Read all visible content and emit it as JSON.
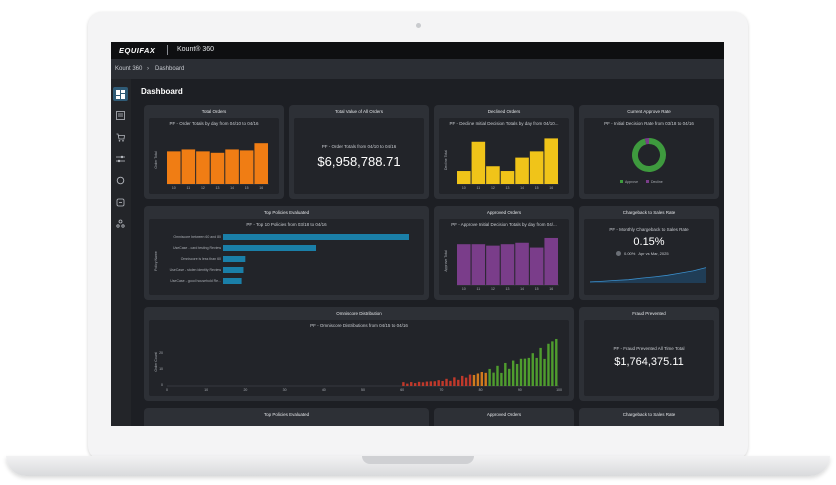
{
  "header": {
    "logo": "EQUIFAX",
    "product": "Kount® 360"
  },
  "breadcrumb": {
    "home": "Kount 360",
    "separator": "›",
    "current": "Dashboard"
  },
  "page": {
    "title": "Dashboard"
  },
  "sidebar": {
    "items": [
      {
        "icon": "dashboard-grid-icon",
        "active": true
      },
      {
        "icon": "orders-list-icon",
        "active": false
      },
      {
        "icon": "cart-icon",
        "active": false
      },
      {
        "icon": "policies-sliders-icon",
        "active": false
      },
      {
        "icon": "refresh-cycle-icon",
        "active": false
      },
      {
        "icon": "rules-icon",
        "active": false
      },
      {
        "icon": "users-network-icon",
        "active": false
      }
    ]
  },
  "cards": {
    "total_orders": {
      "title": "Total Orders",
      "subtitle": "PF - Order Totals by day from 04/10 to 04/16",
      "ylabel": "Order Total"
    },
    "total_value": {
      "title": "Total Value of All Orders",
      "subtitle": "PF - Order Totals from 04/10 to 04/16",
      "value": "$6,958,788.71"
    },
    "declined_orders": {
      "title": "Declined Orders",
      "subtitle": "PF - Decline Initial Decision Totals by day from 04/10...",
      "ylabel": "Decline Total"
    },
    "approve_rate": {
      "title": "Current Approve Rate",
      "subtitle": "PF - Initial Decision Rate from 03/18 to 04/16",
      "legend": [
        "Approve",
        "Decline"
      ]
    },
    "top_policies": {
      "title": "Top Policies Evaluated",
      "subtitle": "PF - Top 10 Policies from 03/18 to 04/16",
      "ylabel": "Policy Name"
    },
    "approved_orders": {
      "title": "Approved Orders",
      "subtitle": "PF - Approve Initial Decision Totals by day from 04/...",
      "ylabel": "Approve Total"
    },
    "chargeback": {
      "title": "Chargeback to Sales Rate",
      "subtitle": "PF - Monthly Chargeback to Sales Rate",
      "value": "0.15%",
      "delta": "0.00%",
      "period": "Apr vs Mar, 2025"
    },
    "omniscore": {
      "title": "Omniscore Distribution",
      "subtitle": "PF - Omniscore Distributions from 04/15 to 04/16",
      "ylabel": "Order Count"
    },
    "fraud_prevented": {
      "title": "Fraud Prevented",
      "subtitle": "PF - Fraud Prevented All Time Total",
      "value": "$1,764,375.11"
    }
  },
  "bottom_row": {
    "left": "Top Policies Evaluated",
    "middle": "Approved Orders",
    "right": "Chargeback to Sales Rate"
  },
  "colors": {
    "orange": "#f07d14",
    "yellow": "#f0c419",
    "purple": "#7a3d8a",
    "teal": "#1a7fa8",
    "green": "#3e8e41",
    "active_nav": "#2f5b76"
  },
  "chart_data": [
    {
      "type": "bar",
      "name": "Total Orders",
      "categories": [
        "10",
        "11",
        "12",
        "13",
        "14",
        "15",
        "16"
      ],
      "values": [
        0.68,
        0.72,
        0.68,
        0.65,
        0.72,
        0.7,
        0.85
      ],
      "color": "#f07d14"
    },
    {
      "type": "bar",
      "name": "Declined Orders",
      "categories": [
        "10",
        "11",
        "12",
        "13",
        "14",
        "15",
        "16"
      ],
      "values": [
        0.27,
        0.88,
        0.37,
        0.27,
        0.55,
        0.68,
        0.95
      ],
      "color": "#f0c419"
    },
    {
      "type": "pie",
      "name": "Current Approve Rate",
      "labels": [
        "Approve",
        "Decline"
      ],
      "values": [
        96,
        4
      ],
      "colors": [
        "#3e9a3e",
        "#7a3d8a"
      ]
    },
    {
      "type": "bar",
      "orientation": "horizontal",
      "name": "Top Policies",
      "categories": [
        "Omniscore between 60 and 80",
        "UseCase - card testing Review",
        "Omniscore is less than 60",
        "UseCase - stolen identity Review",
        "UseCase - good household Re..."
      ],
      "values": [
        1.0,
        0.5,
        0.12,
        0.11,
        0.1
      ],
      "color": "#1a7fa8"
    },
    {
      "type": "bar",
      "name": "Approved Orders",
      "categories": [
        "10",
        "11",
        "12",
        "13",
        "14",
        "15",
        "16"
      ],
      "values": [
        0.85,
        0.85,
        0.82,
        0.85,
        0.88,
        0.78,
        0.98
      ],
      "color": "#7a3d8a"
    },
    {
      "type": "area",
      "name": "Chargeback to Sales Rate",
      "values": [
        0.05,
        0.08,
        0.12,
        0.15,
        0.22,
        0.28,
        0.35,
        0.45,
        0.55,
        0.7
      ]
    },
    {
      "type": "bar",
      "name": "Omniscore Distribution",
      "xticks": [
        "0",
        "10",
        "20",
        "30",
        "40",
        "50",
        "60",
        "70",
        "80",
        "90",
        "100"
      ],
      "yticks": [
        "0",
        "10",
        "20"
      ],
      "xlim": [
        0,
        100
      ],
      "ylim": [
        0,
        30
      ]
    }
  ]
}
